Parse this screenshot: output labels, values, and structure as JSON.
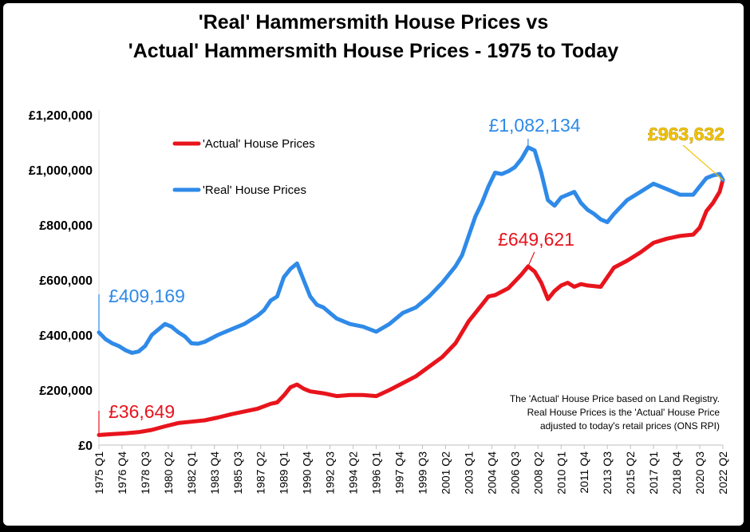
{
  "chart_data": {
    "type": "line",
    "title": [
      "'Real' Hammersmith House Prices vs",
      "'Actual' Hammersmith House Prices - 1975 to Today"
    ],
    "xlabel": "",
    "ylabel": "",
    "ylim": [
      0,
      1200000
    ],
    "yticks": [
      "£1,200,000",
      "£1,000,000",
      "£800,000",
      "£600,000",
      "£400,000",
      "£200,000",
      "£0"
    ],
    "ytick_values": [
      1200000,
      1000000,
      800000,
      600000,
      400000,
      200000,
      0
    ],
    "xlim": [
      1975.0,
      2022.25
    ],
    "xticks": [
      "1975 Q1",
      "1976 Q4",
      "1978 Q3",
      "1980 Q2",
      "1982 Q1",
      "1983 Q4",
      "1985 Q3",
      "1987 Q2",
      "1989 Q1",
      "1990 Q4",
      "1992 Q3",
      "1994 Q2",
      "1996 Q1",
      "1997 Q4",
      "1999 Q3",
      "2001 Q2",
      "2003 Q1",
      "2004 Q4",
      "2006 Q3",
      "2008 Q2",
      "2010 Q1",
      "2011 Q4",
      "2013 Q3",
      "2015 Q2",
      "2017 Q1",
      "2018 Q4",
      "2020 Q3",
      "2022 Q2"
    ],
    "xtick_values": [
      1975.0,
      1976.75,
      1978.5,
      1980.25,
      1982.0,
      1983.75,
      1985.5,
      1987.25,
      1989.0,
      1990.75,
      1992.5,
      1994.25,
      1996.0,
      1997.75,
      1999.5,
      2001.25,
      2003.0,
      2004.75,
      2006.5,
      2008.25,
      2010.0,
      2011.75,
      2013.5,
      2015.25,
      2017.0,
      2018.75,
      2020.5,
      2022.25
    ],
    "legend": "top-left",
    "grid": false,
    "series": [
      {
        "name": "'Actual' House Prices",
        "color": "#e8141c",
        "x": [
          1975.0,
          1976.0,
          1977.0,
          1978.0,
          1979.0,
          1980.0,
          1981.0,
          1982.0,
          1983.0,
          1984.0,
          1985.0,
          1986.0,
          1987.0,
          1988.0,
          1988.5,
          1989.0,
          1989.5,
          1990.0,
          1990.5,
          1991.0,
          1992.0,
          1993.0,
          1994.0,
          1995.0,
          1996.0,
          1997.0,
          1998.0,
          1999.0,
          2000.0,
          2001.0,
          2002.0,
          2003.0,
          2004.0,
          2004.5,
          2005.0,
          2006.0,
          2007.0,
          2007.5,
          2008.0,
          2008.5,
          2009.0,
          2009.5,
          2010.0,
          2010.5,
          2011.0,
          2011.5,
          2012.0,
          2013.0,
          2014.0,
          2015.0,
          2016.0,
          2017.0,
          2018.0,
          2019.0,
          2020.0,
          2020.5,
          2021.0,
          2021.5,
          2022.0,
          2022.25
        ],
        "values": [
          36649,
          40000,
          43000,
          47000,
          55000,
          68000,
          80000,
          85000,
          90000,
          100000,
          112000,
          122000,
          132000,
          150000,
          155000,
          180000,
          210000,
          220000,
          205000,
          195000,
          188000,
          178000,
          182000,
          182000,
          178000,
          200000,
          225000,
          250000,
          285000,
          320000,
          370000,
          450000,
          510000,
          540000,
          545000,
          570000,
          620000,
          649621,
          630000,
          590000,
          530000,
          560000,
          580000,
          590000,
          575000,
          585000,
          580000,
          575000,
          645000,
          670000,
          700000,
          735000,
          750000,
          760000,
          765000,
          790000,
          850000,
          880000,
          920000,
          963632
        ]
      },
      {
        "name": "'Real' House Prices",
        "color": "#2f8ae8",
        "x": [
          1975.0,
          1975.5,
          1976.0,
          1976.5,
          1977.0,
          1977.5,
          1978.0,
          1978.5,
          1979.0,
          1979.5,
          1980.0,
          1980.5,
          1981.0,
          1981.5,
          1982.0,
          1982.5,
          1983.0,
          1984.0,
          1985.0,
          1986.0,
          1987.0,
          1987.5,
          1988.0,
          1988.5,
          1989.0,
          1989.5,
          1990.0,
          1990.5,
          1991.0,
          1991.5,
          1992.0,
          1992.5,
          1993.0,
          1994.0,
          1995.0,
          1996.0,
          1997.0,
          1998.0,
          1999.0,
          2000.0,
          2001.0,
          2002.0,
          2002.5,
          2003.0,
          2003.5,
          2004.0,
          2004.5,
          2005.0,
          2005.5,
          2006.0,
          2006.5,
          2007.0,
          2007.5,
          2008.0,
          2008.5,
          2009.0,
          2009.5,
          2010.0,
          2010.5,
          2011.0,
          2011.5,
          2012.0,
          2012.5,
          2013.0,
          2013.5,
          2014.0,
          2015.0,
          2016.0,
          2017.0,
          2018.0,
          2019.0,
          2020.0,
          2020.5,
          2021.0,
          2021.5,
          2022.0,
          2022.25
        ],
        "values": [
          409169,
          385000,
          370000,
          360000,
          345000,
          335000,
          340000,
          360000,
          400000,
          420000,
          440000,
          430000,
          410000,
          395000,
          370000,
          368000,
          375000,
          400000,
          420000,
          440000,
          470000,
          490000,
          525000,
          540000,
          610000,
          640000,
          660000,
          600000,
          540000,
          510000,
          500000,
          480000,
          460000,
          440000,
          430000,
          412000,
          440000,
          480000,
          500000,
          540000,
          590000,
          650000,
          690000,
          760000,
          830000,
          880000,
          940000,
          990000,
          985000,
          995000,
          1010000,
          1040000,
          1082134,
          1070000,
          990000,
          890000,
          870000,
          900000,
          910000,
          920000,
          880000,
          855000,
          840000,
          820000,
          810000,
          840000,
          890000,
          920000,
          950000,
          930000,
          910000,
          910000,
          940000,
          970000,
          980000,
          985000,
          963632
        ]
      }
    ],
    "annotations": [
      {
        "text": "£409,169",
        "color": "#2f8ae8"
      },
      {
        "text": "£36,649",
        "color": "#e8141c"
      },
      {
        "text": "£649,621",
        "color": "#e8141c"
      },
      {
        "text": "£1,082,134",
        "color": "#2f8ae8"
      },
      {
        "text": "£963,632",
        "color": "#f2c200"
      }
    ],
    "note": [
      "The 'Actual' House Price based on Land Registry.",
      "Real House Prices is the 'Actual' House Price",
      "adjusted  to today's retail prices (ONS RPI)"
    ]
  }
}
